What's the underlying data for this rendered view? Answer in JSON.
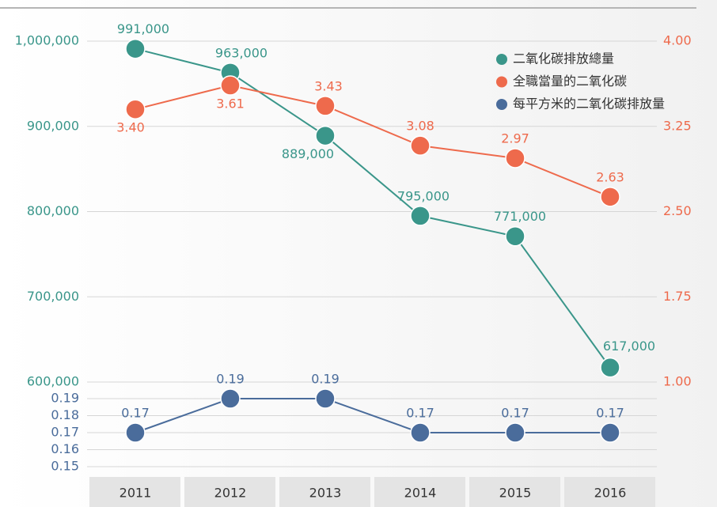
{
  "chart_data": {
    "type": "line",
    "categories": [
      "2011",
      "2012",
      "2013",
      "2014",
      "2015",
      "2016"
    ],
    "series": [
      {
        "name": "二氧化碳排放總量",
        "color": "#3a968a",
        "axis": "y",
        "values": [
          991000,
          963000,
          889000,
          795000,
          771000,
          617000
        ],
        "value_labels": [
          "991,000",
          "963,000",
          "889,000",
          "795,000",
          "771,000",
          "617,000"
        ]
      },
      {
        "name": "全職當量的二氧化碳",
        "color": "#ee6a4c",
        "axis": "y2",
        "values": [
          3.4,
          3.61,
          3.43,
          3.08,
          2.97,
          2.63
        ],
        "value_labels": [
          "3.40",
          "3.61",
          "3.43",
          "3.08",
          "2.97",
          "2.63"
        ]
      },
      {
        "name": "每平方米的二氧化碳排放量",
        "color": "#4a6c9b",
        "axis": "y3",
        "values": [
          0.17,
          0.19,
          0.19,
          0.17,
          0.17,
          0.17
        ]
      }
    ],
    "ylim": [
      600000,
      1000000
    ],
    "yticks": [
      {
        "value": 600000,
        "label": "600,000"
      },
      {
        "value": 700000,
        "label": "700,000"
      },
      {
        "value": 800000,
        "label": "800,000"
      },
      {
        "value": 900000,
        "label": "900,000"
      },
      {
        "value": 1000000,
        "label": "1,000,000"
      }
    ],
    "y2lim": [
      1,
      4
    ],
    "y2ticks": [
      {
        "value": 1,
        "label": "1.00"
      },
      1.75,
      {
        "value": 2.5,
        "label": "2.50"
      },
      3.25,
      {
        "value": 4,
        "label": "4.00"
      }
    ],
    "y3lim": [
      0.15,
      0.19
    ],
    "y3ticks": [
      0.15,
      0.16,
      0.17,
      0.18,
      0.19
    ],
    "grid": true,
    "legend": "top-right"
  }
}
